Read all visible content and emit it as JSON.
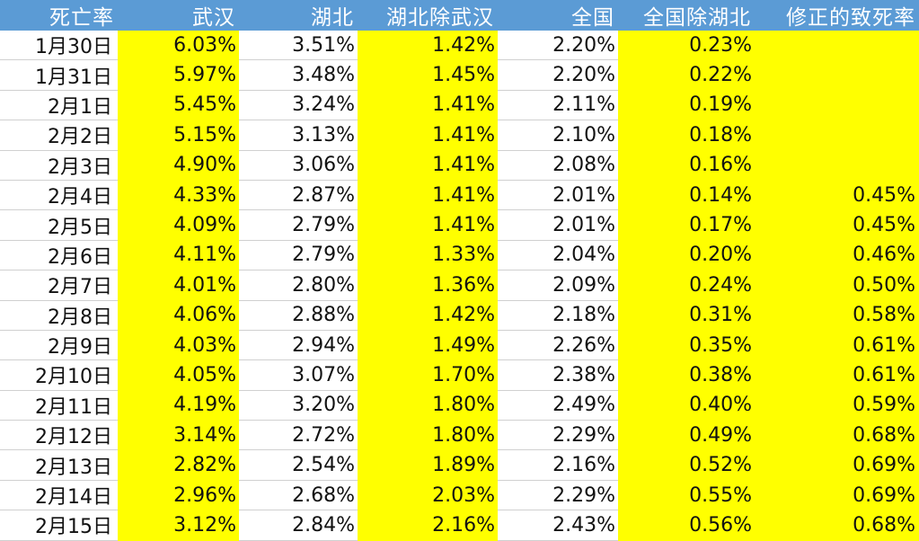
{
  "headers": [
    "死亡率",
    "武汉",
    "湖北",
    "湖北除武汉",
    "全国",
    "全国除湖北",
    "修正的致死率"
  ],
  "highlight_color": "#ffff00",
  "header_color": "#5b9bd5",
  "rows": [
    [
      "1月30日",
      "6.03%",
      "3.51%",
      "1.42%",
      "2.20%",
      "0.23%",
      ""
    ],
    [
      "1月31日",
      "5.97%",
      "3.48%",
      "1.45%",
      "2.20%",
      "0.22%",
      ""
    ],
    [
      "2月1日",
      "5.45%",
      "3.24%",
      "1.41%",
      "2.11%",
      "0.19%",
      ""
    ],
    [
      "2月2日",
      "5.15%",
      "3.13%",
      "1.41%",
      "2.10%",
      "0.18%",
      ""
    ],
    [
      "2月3日",
      "4.90%",
      "3.06%",
      "1.41%",
      "2.08%",
      "0.16%",
      ""
    ],
    [
      "2月4日",
      "4.33%",
      "2.87%",
      "1.41%",
      "2.01%",
      "0.14%",
      "0.45%"
    ],
    [
      "2月5日",
      "4.09%",
      "2.79%",
      "1.41%",
      "2.01%",
      "0.17%",
      "0.45%"
    ],
    [
      "2月6日",
      "4.11%",
      "2.79%",
      "1.33%",
      "2.04%",
      "0.20%",
      "0.46%"
    ],
    [
      "2月7日",
      "4.01%",
      "2.80%",
      "1.36%",
      "2.09%",
      "0.24%",
      "0.50%"
    ],
    [
      "2月8日",
      "4.06%",
      "2.88%",
      "1.42%",
      "2.18%",
      "0.31%",
      "0.58%"
    ],
    [
      "2月9日",
      "4.03%",
      "2.94%",
      "1.49%",
      "2.26%",
      "0.35%",
      "0.61%"
    ],
    [
      "2月10日",
      "4.05%",
      "3.07%",
      "1.70%",
      "2.38%",
      "0.38%",
      "0.61%"
    ],
    [
      "2月11日",
      "4.19%",
      "3.20%",
      "1.80%",
      "2.49%",
      "0.40%",
      "0.59%"
    ],
    [
      "2月12日",
      "3.14%",
      "2.72%",
      "1.80%",
      "2.29%",
      "0.49%",
      "0.68%"
    ],
    [
      "2月13日",
      "2.82%",
      "2.54%",
      "1.89%",
      "2.16%",
      "0.52%",
      "0.69%"
    ],
    [
      "2月14日",
      "2.96%",
      "2.68%",
      "2.03%",
      "2.29%",
      "0.55%",
      "0.69%"
    ],
    [
      "2月15日",
      "3.12%",
      "2.84%",
      "2.16%",
      "2.43%",
      "0.56%",
      "0.68%"
    ]
  ]
}
